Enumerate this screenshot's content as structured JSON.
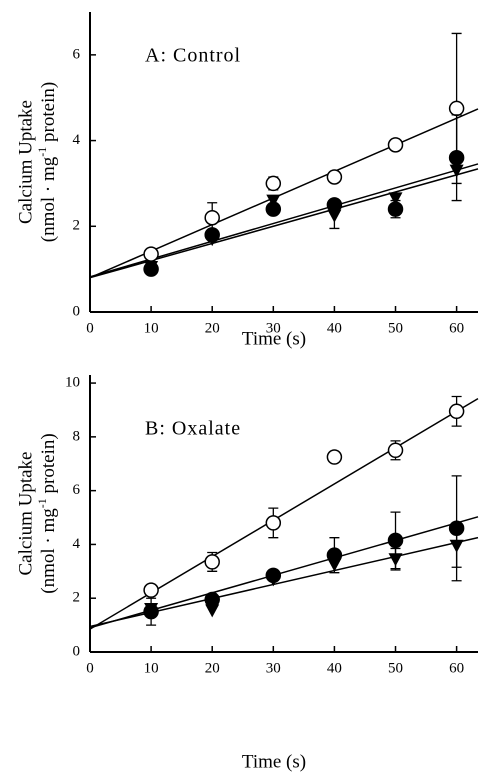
{
  "chart_data": [
    {
      "type": "scatter",
      "title": "A: Control",
      "xlabel": "Time (s)",
      "ylabel": "Calcium Uptake",
      "ylabel_unit": [
        "(nmol · mg",
        "-1",
        " protein)"
      ],
      "x": [
        10,
        20,
        30,
        40,
        50,
        60
      ],
      "xlim": [
        0,
        63.5
      ],
      "ylim": [
        0,
        7
      ],
      "xticks": [
        0,
        10,
        20,
        30,
        40,
        50,
        60
      ],
      "yticks": [
        0,
        2,
        4,
        6
      ],
      "series": [
        {
          "marker": "open-circle",
          "color": "#000000",
          "values": [
            1.35,
            2.2,
            3.0,
            3.15,
            3.9,
            4.75
          ],
          "errors": [
            null,
            0.35,
            0.15,
            null,
            null,
            1.75
          ],
          "fit": {
            "intercept": 0.8,
            "slope": 0.062
          }
        },
        {
          "marker": "filled-circle",
          "color": "#000000",
          "values": [
            1.0,
            1.8,
            2.4,
            2.5,
            2.4,
            3.6
          ],
          "errors": [
            null,
            null,
            null,
            null,
            0.2,
            1.0
          ],
          "fit": {
            "intercept": 0.82,
            "slope": 0.0415
          }
        },
        {
          "marker": "triangle-down",
          "color": "#000000",
          "values": [
            1.05,
            1.7,
            2.6,
            2.25,
            2.65,
            3.3
          ],
          "errors": [
            null,
            null,
            null,
            0.3,
            null,
            null
          ],
          "fit": {
            "intercept": 0.8,
            "slope": 0.04
          }
        }
      ]
    },
    {
      "type": "scatter",
      "title": "B: Oxalate",
      "xlabel": "Time (s)",
      "ylabel": "Calcium Uptake",
      "ylabel_unit": [
        "(nmol · mg",
        "-1",
        " protein)"
      ],
      "x": [
        10,
        20,
        30,
        40,
        50,
        60
      ],
      "xlim": [
        0,
        63.5
      ],
      "ylim": [
        0,
        10.3
      ],
      "xticks": [
        0,
        10,
        20,
        30,
        40,
        50,
        60
      ],
      "yticks": [
        0,
        2,
        4,
        6,
        8,
        10
      ],
      "series": [
        {
          "marker": "open-circle",
          "color": "#000000",
          "values": [
            2.3,
            3.35,
            4.8,
            7.25,
            7.5,
            8.95
          ],
          "errors": [
            null,
            0.35,
            0.55,
            null,
            0.35,
            0.55
          ],
          "fit": {
            "intercept": 0.85,
            "slope": 0.135
          }
        },
        {
          "marker": "filled-circle",
          "color": "#000000",
          "values": [
            1.5,
            1.95,
            2.85,
            3.6,
            4.15,
            4.6
          ],
          "errors": [
            0.5,
            null,
            null,
            0.65,
            1.05,
            1.95
          ],
          "fit": {
            "intercept": 0.9,
            "slope": 0.065
          }
        },
        {
          "marker": "triangle-down",
          "color": "#000000",
          "values": [
            1.6,
            1.55,
            2.7,
            3.25,
            3.45,
            3.95
          ],
          "errors": [
            null,
            null,
            null,
            null,
            0.4,
            0.8
          ],
          "fit": {
            "intercept": 0.95,
            "slope": 0.052
          }
        }
      ]
    }
  ]
}
